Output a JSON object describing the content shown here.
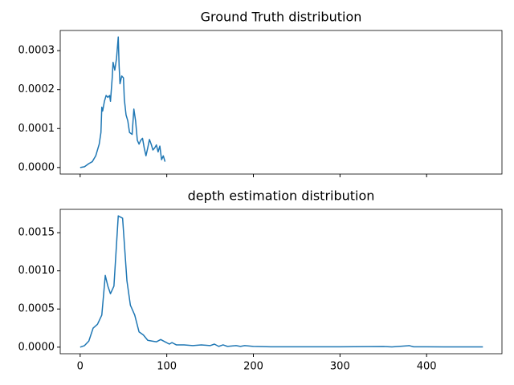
{
  "chart_data": [
    {
      "type": "line",
      "title": "Ground Truth distribution",
      "color": "#1f77b4",
      "x": [
        0,
        5,
        10,
        14,
        18,
        22,
        24,
        25,
        26,
        28,
        30,
        32,
        34,
        35,
        37,
        38,
        40,
        42,
        44,
        45,
        46,
        48,
        50,
        51,
        53,
        55,
        57,
        60,
        62,
        64,
        66,
        68,
        70,
        72,
        74,
        76,
        78,
        80,
        82,
        84,
        86,
        88,
        90,
        92,
        94,
        96,
        98
      ],
      "values": [
        0,
        2e-06,
        1e-05,
        1.5e-05,
        3e-05,
        6e-05,
        9e-05,
        0.000155,
        0.000145,
        0.00017,
        0.000185,
        0.00018,
        0.000185,
        0.00017,
        0.00023,
        0.00027,
        0.00025,
        0.00028,
        0.000335,
        0.00026,
        0.000215,
        0.000235,
        0.00023,
        0.000175,
        0.000135,
        0.00012,
        9e-05,
        8.5e-05,
        0.00015,
        0.00012,
        7e-05,
        6e-05,
        7e-05,
        7.5e-05,
        5e-05,
        3e-05,
        5e-05,
        7.2e-05,
        6e-05,
        4.5e-05,
        5e-05,
        5.8e-05,
        4e-05,
        5.5e-05,
        2e-05,
        3e-05,
        1.5e-05
      ],
      "xlim": [
        -23,
        487
      ],
      "ylim": [
        -1.68e-05,
        0.0003518
      ],
      "yticks": [
        {
          "value": 0,
          "label": "0.0000"
        },
        {
          "value": 0.0001,
          "label": "0.0001"
        },
        {
          "value": 0.0002,
          "label": "0.0002"
        },
        {
          "value": 0.0003,
          "label": "0.0003"
        }
      ]
    },
    {
      "type": "line",
      "title": "depth estimation distribution",
      "color": "#1f77b4",
      "x": [
        0,
        5,
        10,
        15,
        20,
        25,
        29,
        32,
        35,
        39,
        44,
        49,
        54,
        58,
        63,
        68,
        73,
        78,
        83,
        88,
        93,
        98,
        103,
        106,
        111,
        120,
        130,
        140,
        150,
        155,
        160,
        165,
        170,
        180,
        185,
        190,
        200,
        220,
        250,
        300,
        350,
        360,
        380,
        385,
        400,
        420,
        440,
        465
      ],
      "values": [
        0,
        2e-05,
        8e-05,
        0.00025,
        0.0003,
        0.00042,
        0.00094,
        0.0008,
        0.0007,
        0.0008,
        0.00172,
        0.00169,
        0.00087,
        0.00055,
        0.00042,
        0.0002,
        0.00016,
        9e-05,
        8e-05,
        7e-05,
        0.0001,
        7e-05,
        4e-05,
        6e-05,
        3e-05,
        3e-05,
        2e-05,
        3e-05,
        2e-05,
        4e-05,
        1e-05,
        3e-05,
        1e-05,
        2e-05,
        1e-05,
        2e-05,
        1e-05,
        5e-06,
        5e-06,
        5e-06,
        8e-06,
        3e-06,
        2e-05,
        5e-06,
        5e-06,
        3e-06,
        3e-06,
        3e-06
      ],
      "xlim": [
        -23,
        487
      ],
      "ylim": [
        -8.6e-05,
        0.001806
      ],
      "xticks": [
        0,
        100,
        200,
        300,
        400
      ],
      "yticks": [
        {
          "value": 0,
          "label": "0.0000"
        },
        {
          "value": 0.0005,
          "label": "0.0005"
        },
        {
          "value": 0.001,
          "label": "0.0010"
        },
        {
          "value": 0.0015,
          "label": "0.0015"
        }
      ]
    }
  ]
}
